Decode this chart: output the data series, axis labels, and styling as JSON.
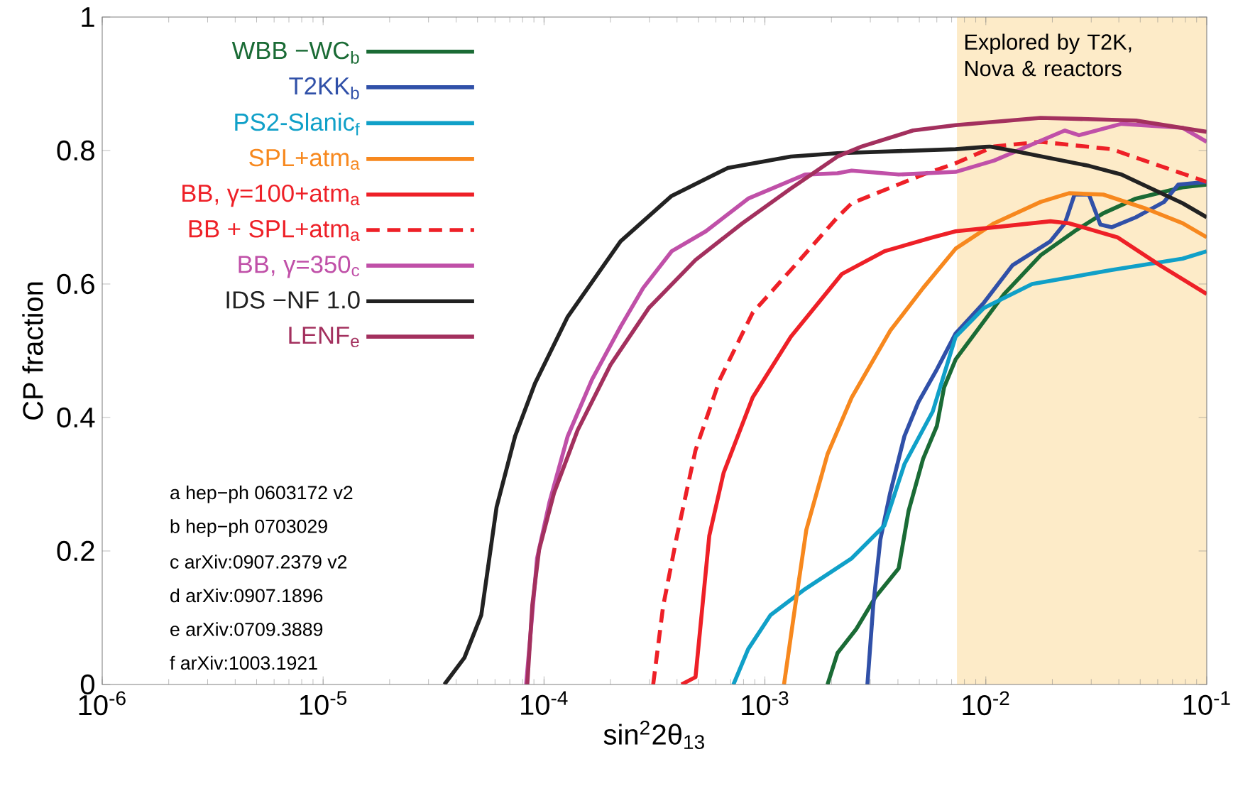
{
  "chart_data": {
    "type": "line",
    "xlabel": "sin$^{2}$2θ$_{13}$",
    "ylabel": "CP  fraction",
    "log": "x",
    "xlim": [
      1e-06,
      0.1
    ],
    "ylim": [
      0,
      1
    ],
    "xticks": [
      {
        "value": 1e-06,
        "label": "10$^{-6}$"
      },
      {
        "value": 1e-05,
        "label": "10$^{-5}$"
      },
      {
        "value": 0.0001,
        "label": "10$^{-4}$"
      },
      {
        "value": 0.001,
        "label": "10$^{-3}$"
      },
      {
        "value": 0.01,
        "label": "10$^{-2}$"
      },
      {
        "value": 0.1,
        "label": "10$^{-1}$"
      }
    ],
    "yticks": [
      0,
      0.2,
      0.4,
      0.6,
      0.8,
      1
    ],
    "grid": false,
    "legend": "top left",
    "marker": "none",
    "line_style": "solid",
    "bands": [
      {
        "axis": "x",
        "from": 0.0074,
        "to": 0.1,
        "label": "Explored by T2K, Nova & reactors",
        "color": "#fdebc8"
      }
    ],
    "annotations": [
      "a  hep−ph 0603172 v2",
      "b  hep−ph 0703029",
      "c  arXiv:0907.2379 v2",
      "d  arXiv:0907.1896",
      "e  arXiv:0709.3889",
      "f  arXiv:1003.1921"
    ],
    "series": [
      {
        "name": "WBB −WC$_{b}$",
        "color": "#1a6b35",
        "x": [
          0.00192,
          0.00213,
          0.00259,
          0.00318,
          0.00403,
          0.00447,
          0.0052,
          0.006,
          0.00647,
          0.0073,
          0.0094,
          0.0121,
          0.0177,
          0.0252,
          0.034,
          0.0478,
          0.0778,
          0.1
        ],
        "values": [
          0,
          0.047,
          0.083,
          0.132,
          0.174,
          0.26,
          0.338,
          0.387,
          0.445,
          0.487,
          0.536,
          0.585,
          0.643,
          0.679,
          0.706,
          0.728,
          0.745,
          0.749
        ]
      },
      {
        "name": "T2KK$_{b}$",
        "color": "#3050a8",
        "x": [
          0.00291,
          0.00309,
          0.00333,
          0.00369,
          0.00428,
          0.00495,
          0.006,
          0.0073,
          0.0098,
          0.0132,
          0.0196,
          0.0228,
          0.0252,
          0.0293,
          0.033,
          0.0371,
          0.0478,
          0.0641,
          0.0743,
          0.1
        ],
        "values": [
          0,
          0.117,
          0.217,
          0.287,
          0.372,
          0.423,
          0.472,
          0.526,
          0.572,
          0.628,
          0.664,
          0.691,
          0.734,
          0.734,
          0.689,
          0.685,
          0.7,
          0.723,
          0.749,
          0.753
        ]
      },
      {
        "name": "PS2-Slanic$_{f}$",
        "color": "#10a0c8",
        "x": [
          0.00072,
          0.00084,
          0.00106,
          0.00152,
          0.00247,
          0.00347,
          0.00428,
          0.00575,
          0.0073,
          0.0098,
          0.0162,
          0.0371,
          0.0778,
          0.1
        ],
        "values": [
          0,
          0.053,
          0.104,
          0.143,
          0.189,
          0.238,
          0.33,
          0.409,
          0.521,
          0.564,
          0.6,
          0.621,
          0.638,
          0.649
        ]
      },
      {
        "name": "SPL+atm$_{a}$",
        "color": "#f7881e",
        "x": [
          0.00122,
          0.00137,
          0.00154,
          0.00192,
          0.00247,
          0.00369,
          0.0052,
          0.0073,
          0.0109,
          0.0177,
          0.0238,
          0.034,
          0.053,
          0.0778,
          0.1
        ],
        "values": [
          0,
          0.117,
          0.232,
          0.345,
          0.43,
          0.53,
          0.594,
          0.653,
          0.691,
          0.723,
          0.736,
          0.734,
          0.713,
          0.691,
          0.67
        ]
      },
      {
        "name": "BB, γ=100+atm$_{a}$",
        "color": "#ee2027",
        "x": [
          0.000419,
          0.000485,
          0.00056,
          0.00065,
          0.00088,
          0.00131,
          0.00223,
          0.00347,
          0.00575,
          0.0073,
          0.0109,
          0.0196,
          0.0238,
          0.0394,
          0.0614,
          0.1
        ],
        "values": [
          0,
          0.011,
          0.223,
          0.317,
          0.43,
          0.521,
          0.615,
          0.649,
          0.67,
          0.679,
          0.685,
          0.694,
          0.691,
          0.67,
          0.628,
          0.585
        ]
      },
      {
        "name": "BB + SPL+atm$_{a}$",
        "color": "#ee2027",
        "line_style": "dashed",
        "x": [
          0.000312,
          0.000346,
          0.0004,
          0.000485,
          0.000625,
          0.00088,
          0.00131,
          0.00213,
          0.00247,
          0.0052,
          0.0073,
          0.0109,
          0.0177,
          0.0371,
          0.0614,
          0.1
        ],
        "values": [
          0,
          0.117,
          0.223,
          0.351,
          0.457,
          0.557,
          0.621,
          0.7,
          0.721,
          0.764,
          0.781,
          0.806,
          0.813,
          0.802,
          0.777,
          0.753
        ]
      },
      {
        "name": "BB, γ=350$_{c}$",
        "color": "#c050a8",
        "x": [
          8.3e-05,
          9.3e-05,
          0.000106,
          0.000128,
          0.000165,
          0.000222,
          0.000281,
          0.000378,
          0.00054,
          0.00084,
          0.00152,
          0.00213,
          0.00247,
          0.00403,
          0.0073,
          0.0109,
          0.0228,
          0.0264,
          0.0411,
          0.0778,
          0.1
        ],
        "values": [
          0,
          0.189,
          0.274,
          0.372,
          0.457,
          0.536,
          0.594,
          0.649,
          0.679,
          0.728,
          0.764,
          0.766,
          0.77,
          0.764,
          0.768,
          0.785,
          0.83,
          0.823,
          0.84,
          0.834,
          0.813
        ]
      },
      {
        "name": "IDS −NF  1.0",
        "color": "#222222",
        "x": [
          3.54e-05,
          4.36e-05,
          5.2e-05,
          6.1e-05,
          7.4e-05,
          9.1e-05,
          0.000128,
          0.000222,
          0.000378,
          0.00068,
          0.00131,
          0.00213,
          0.0073,
          0.0104,
          0.014,
          0.0293,
          0.0411,
          0.0778,
          0.1
        ],
        "values": [
          0,
          0.04,
          0.104,
          0.266,
          0.372,
          0.451,
          0.551,
          0.664,
          0.732,
          0.774,
          0.791,
          0.796,
          0.802,
          0.806,
          0.798,
          0.777,
          0.764,
          0.721,
          0.7
        ]
      },
      {
        "name": "LENF$_{e}$",
        "color": "#a3305e",
        "x": [
          8.4e-05,
          8.85e-05,
          9.5e-05,
          0.000111,
          0.000142,
          0.0002,
          0.000298,
          0.000485,
          0.00079,
          0.00131,
          0.00213,
          0.00274,
          0.00468,
          0.0073,
          0.0177,
          0.0478,
          0.1
        ],
        "values": [
          0,
          0.119,
          0.202,
          0.287,
          0.381,
          0.479,
          0.564,
          0.636,
          0.691,
          0.743,
          0.791,
          0.806,
          0.83,
          0.838,
          0.849,
          0.845,
          0.828
        ]
      }
    ]
  }
}
